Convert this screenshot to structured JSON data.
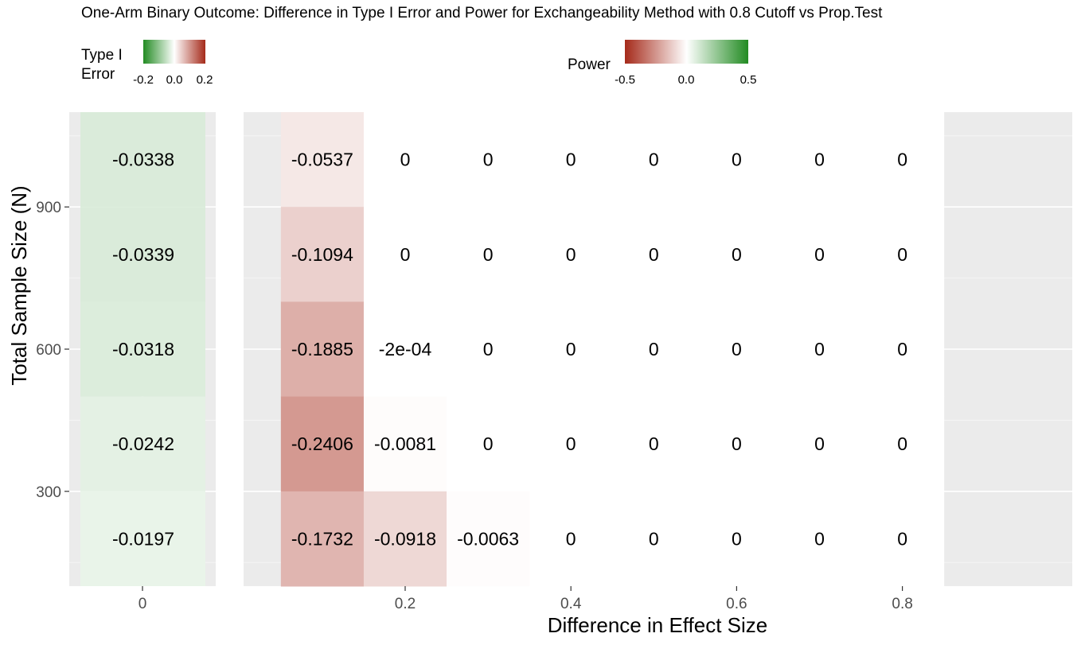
{
  "chart_data": {
    "type": "heatmap",
    "title": "One-Arm Binary Outcome: Difference in Type I Error and Power for Exchangeability Method with 0.8 Cutoff vs Prop.Test",
    "xlabel": "Difference in Effect Size",
    "ylabel": "Total Sample Size (N)",
    "y_ticks": [
      300,
      600,
      900
    ],
    "y_range": [
      100,
      1100
    ],
    "y_values": [
      200,
      400,
      600,
      800,
      1000
    ],
    "legends": [
      {
        "title": "Type I Error",
        "range": [
          -0.2,
          0.2
        ],
        "ticks": [
          "-0.2",
          "0.0",
          "0.2"
        ],
        "low_color": "#228B22",
        "mid_color": "#FFFFFF",
        "high_color": "#A52A1A"
      },
      {
        "title": "Power",
        "range": [
          -0.5,
          0.5
        ],
        "ticks": [
          "-0.5",
          "0.0",
          "0.5"
        ],
        "low_color": "#A52A1A",
        "mid_color": "#FFFFFF",
        "high_color": "#228B22"
      }
    ],
    "panels": [
      {
        "name": "type1",
        "x_ticks": [
          "0"
        ],
        "x_values": [
          0
        ],
        "cells": [
          {
            "x": 0,
            "y": 1000,
            "value": -0.0338,
            "label": "-0.0338"
          },
          {
            "x": 0,
            "y": 800,
            "value": -0.0339,
            "label": "-0.0339"
          },
          {
            "x": 0,
            "y": 600,
            "value": -0.0318,
            "label": "-0.0318"
          },
          {
            "x": 0,
            "y": 400,
            "value": -0.0242,
            "label": "-0.0242"
          },
          {
            "x": 0,
            "y": 200,
            "value": -0.0197,
            "label": "-0.0197"
          }
        ]
      },
      {
        "name": "power",
        "x_ticks": [
          "0.2",
          "0.4",
          "0.6",
          "0.8"
        ],
        "x_range": [
          0.05,
          0.85
        ],
        "cells": [
          {
            "x": 0.1,
            "y": 1000,
            "value": -0.0537,
            "label": "-0.0537"
          },
          {
            "x": 0.2,
            "y": 1000,
            "value": 0,
            "label": "0"
          },
          {
            "x": 0.3,
            "y": 1000,
            "value": 0,
            "label": "0"
          },
          {
            "x": 0.4,
            "y": 1000,
            "value": 0,
            "label": "0"
          },
          {
            "x": 0.5,
            "y": 1000,
            "value": 0,
            "label": "0"
          },
          {
            "x": 0.6,
            "y": 1000,
            "value": 0,
            "label": "0"
          },
          {
            "x": 0.7,
            "y": 1000,
            "value": 0,
            "label": "0"
          },
          {
            "x": 0.8,
            "y": 1000,
            "value": 0,
            "label": "0"
          },
          {
            "x": 0.1,
            "y": 800,
            "value": -0.1094,
            "label": "-0.1094"
          },
          {
            "x": 0.2,
            "y": 800,
            "value": 0,
            "label": "0"
          },
          {
            "x": 0.3,
            "y": 800,
            "value": 0,
            "label": "0"
          },
          {
            "x": 0.4,
            "y": 800,
            "value": 0,
            "label": "0"
          },
          {
            "x": 0.5,
            "y": 800,
            "value": 0,
            "label": "0"
          },
          {
            "x": 0.6,
            "y": 800,
            "value": 0,
            "label": "0"
          },
          {
            "x": 0.7,
            "y": 800,
            "value": 0,
            "label": "0"
          },
          {
            "x": 0.8,
            "y": 800,
            "value": 0,
            "label": "0"
          },
          {
            "x": 0.1,
            "y": 600,
            "value": -0.1885,
            "label": "-0.1885"
          },
          {
            "x": 0.2,
            "y": 600,
            "value": -0.0002,
            "label": "-2e-04"
          },
          {
            "x": 0.3,
            "y": 600,
            "value": 0,
            "label": "0"
          },
          {
            "x": 0.4,
            "y": 600,
            "value": 0,
            "label": "0"
          },
          {
            "x": 0.5,
            "y": 600,
            "value": 0,
            "label": "0"
          },
          {
            "x": 0.6,
            "y": 600,
            "value": 0,
            "label": "0"
          },
          {
            "x": 0.7,
            "y": 600,
            "value": 0,
            "label": "0"
          },
          {
            "x": 0.8,
            "y": 600,
            "value": 0,
            "label": "0"
          },
          {
            "x": 0.1,
            "y": 400,
            "value": -0.2406,
            "label": "-0.2406"
          },
          {
            "x": 0.2,
            "y": 400,
            "value": -0.0081,
            "label": "-0.0081"
          },
          {
            "x": 0.3,
            "y": 400,
            "value": 0,
            "label": "0"
          },
          {
            "x": 0.4,
            "y": 400,
            "value": 0,
            "label": "0"
          },
          {
            "x": 0.5,
            "y": 400,
            "value": 0,
            "label": "0"
          },
          {
            "x": 0.6,
            "y": 400,
            "value": 0,
            "label": "0"
          },
          {
            "x": 0.7,
            "y": 400,
            "value": 0,
            "label": "0"
          },
          {
            "x": 0.8,
            "y": 400,
            "value": 0,
            "label": "0"
          },
          {
            "x": 0.1,
            "y": 200,
            "value": -0.1732,
            "label": "-0.1732"
          },
          {
            "x": 0.2,
            "y": 200,
            "value": -0.0918,
            "label": "-0.0918"
          },
          {
            "x": 0.3,
            "y": 200,
            "value": -0.0063,
            "label": "-0.0063"
          },
          {
            "x": 0.4,
            "y": 200,
            "value": 0,
            "label": "0"
          },
          {
            "x": 0.5,
            "y": 200,
            "value": 0,
            "label": "0"
          },
          {
            "x": 0.6,
            "y": 200,
            "value": 0,
            "label": "0"
          },
          {
            "x": 0.7,
            "y": 200,
            "value": 0,
            "label": "0"
          },
          {
            "x": 0.8,
            "y": 200,
            "value": 0,
            "label": "0"
          }
        ]
      }
    ]
  }
}
